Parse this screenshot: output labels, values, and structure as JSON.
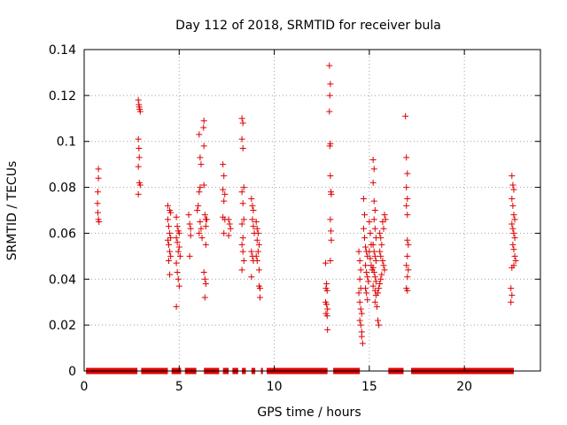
{
  "chart_data": {
    "type": "scatter",
    "title": "Day 112 of 2018, SRMTID for receiver bula",
    "xlabel": "GPS time / hours",
    "ylabel": "SRMTID / TECUs",
    "xlim": [
      0,
      24
    ],
    "ylim": [
      0,
      0.14
    ],
    "grid": true,
    "marker": "+",
    "color": "#dd0000",
    "xticks": [
      0,
      5,
      10,
      15,
      20
    ],
    "xtick_labels": [
      "0",
      "5",
      "10",
      "15",
      "20"
    ],
    "yticks": [
      0,
      0.02,
      0.04,
      0.06,
      0.08,
      0.1,
      0.12,
      0.14
    ],
    "ytick_labels": [
      "0",
      "0.02",
      "0.04",
      "0.06",
      "0.08",
      "0.1",
      "0.12",
      "0.14"
    ],
    "zero_segments": [
      [
        0.1,
        2.8
      ],
      [
        3.0,
        4.4
      ],
      [
        4.6,
        5.1
      ],
      [
        5.3,
        5.9
      ],
      [
        6.3,
        7.1
      ],
      [
        7.3,
        7.6
      ],
      [
        7.8,
        8.1
      ],
      [
        8.3,
        8.5
      ],
      [
        8.8,
        9.0
      ],
      [
        9.3,
        9.4
      ],
      [
        9.6,
        12.8
      ],
      [
        13.1,
        14.5
      ],
      [
        16.0,
        16.8
      ],
      [
        17.2,
        22.6
      ]
    ],
    "series": [
      {
        "name": "SRMTID",
        "points": [
          [
            0.75,
            0.088
          ],
          [
            0.75,
            0.084
          ],
          [
            0.72,
            0.078
          ],
          [
            0.7,
            0.073
          ],
          [
            0.72,
            0.069
          ],
          [
            0.75,
            0.066
          ],
          [
            0.78,
            0.065
          ],
          [
            2.85,
            0.118
          ],
          [
            2.88,
            0.116
          ],
          [
            2.9,
            0.115
          ],
          [
            2.92,
            0.114
          ],
          [
            2.95,
            0.113
          ],
          [
            2.85,
            0.101
          ],
          [
            2.88,
            0.097
          ],
          [
            2.9,
            0.093
          ],
          [
            2.85,
            0.089
          ],
          [
            2.9,
            0.082
          ],
          [
            2.95,
            0.081
          ],
          [
            2.85,
            0.077
          ],
          [
            4.4,
            0.072
          ],
          [
            4.5,
            0.07
          ],
          [
            4.55,
            0.069
          ],
          [
            4.4,
            0.066
          ],
          [
            4.45,
            0.063
          ],
          [
            4.5,
            0.06
          ],
          [
            4.55,
            0.058
          ],
          [
            4.4,
            0.057
          ],
          [
            4.45,
            0.055
          ],
          [
            4.5,
            0.052
          ],
          [
            4.55,
            0.05
          ],
          [
            4.45,
            0.048
          ],
          [
            4.5,
            0.042
          ],
          [
            4.85,
            0.067
          ],
          [
            4.9,
            0.063
          ],
          [
            4.95,
            0.061
          ],
          [
            5.0,
            0.06
          ],
          [
            4.85,
            0.058
          ],
          [
            4.9,
            0.056
          ],
          [
            5.0,
            0.054
          ],
          [
            4.95,
            0.052
          ],
          [
            5.05,
            0.05
          ],
          [
            4.85,
            0.047
          ],
          [
            4.9,
            0.043
          ],
          [
            4.95,
            0.04
          ],
          [
            5.0,
            0.037
          ],
          [
            4.85,
            0.028
          ],
          [
            5.5,
            0.068
          ],
          [
            5.55,
            0.064
          ],
          [
            5.6,
            0.062
          ],
          [
            5.6,
            0.059
          ],
          [
            5.55,
            0.05
          ],
          [
            6.05,
            0.103
          ],
          [
            6.1,
            0.093
          ],
          [
            6.15,
            0.09
          ],
          [
            6.1,
            0.08
          ],
          [
            6.05,
            0.078
          ],
          [
            6.0,
            0.072
          ],
          [
            5.95,
            0.07
          ],
          [
            6.1,
            0.065
          ],
          [
            6.15,
            0.062
          ],
          [
            6.05,
            0.06
          ],
          [
            6.2,
            0.058
          ],
          [
            6.3,
            0.109
          ],
          [
            6.28,
            0.106
          ],
          [
            6.3,
            0.098
          ],
          [
            6.3,
            0.081
          ],
          [
            6.35,
            0.068
          ],
          [
            6.4,
            0.066
          ],
          [
            6.45,
            0.066
          ],
          [
            6.4,
            0.063
          ],
          [
            6.4,
            0.055
          ],
          [
            6.3,
            0.043
          ],
          [
            6.35,
            0.04
          ],
          [
            6.4,
            0.038
          ],
          [
            6.35,
            0.032
          ],
          [
            7.3,
            0.09
          ],
          [
            7.35,
            0.085
          ],
          [
            7.3,
            0.079
          ],
          [
            7.4,
            0.077
          ],
          [
            7.35,
            0.074
          ],
          [
            7.3,
            0.067
          ],
          [
            7.4,
            0.066
          ],
          [
            7.35,
            0.06
          ],
          [
            7.6,
            0.066
          ],
          [
            7.65,
            0.064
          ],
          [
            7.7,
            0.062
          ],
          [
            7.6,
            0.059
          ],
          [
            8.3,
            0.11
          ],
          [
            8.35,
            0.108
          ],
          [
            8.3,
            0.101
          ],
          [
            8.35,
            0.097
          ],
          [
            8.4,
            0.08
          ],
          [
            8.3,
            0.078
          ],
          [
            8.35,
            0.073
          ],
          [
            8.4,
            0.066
          ],
          [
            8.3,
            0.064
          ],
          [
            8.35,
            0.058
          ],
          [
            8.3,
            0.055
          ],
          [
            8.35,
            0.052
          ],
          [
            8.4,
            0.048
          ],
          [
            8.3,
            0.044
          ],
          [
            8.8,
            0.075
          ],
          [
            8.85,
            0.072
          ],
          [
            8.9,
            0.07
          ],
          [
            8.85,
            0.066
          ],
          [
            8.9,
            0.063
          ],
          [
            8.95,
            0.06
          ],
          [
            8.8,
            0.052
          ],
          [
            8.85,
            0.05
          ],
          [
            8.9,
            0.048
          ],
          [
            8.8,
            0.041
          ],
          [
            9.05,
            0.065
          ],
          [
            9.1,
            0.062
          ],
          [
            9.15,
            0.06
          ],
          [
            9.1,
            0.057
          ],
          [
            9.2,
            0.055
          ],
          [
            9.15,
            0.052
          ],
          [
            9.05,
            0.05
          ],
          [
            9.1,
            0.048
          ],
          [
            9.2,
            0.044
          ],
          [
            9.2,
            0.037
          ],
          [
            9.25,
            0.036
          ],
          [
            9.25,
            0.032
          ],
          [
            12.7,
            0.047
          ],
          [
            12.75,
            0.038
          ],
          [
            12.72,
            0.036
          ],
          [
            12.78,
            0.035
          ],
          [
            12.7,
            0.03
          ],
          [
            12.75,
            0.029
          ],
          [
            12.8,
            0.027
          ],
          [
            12.72,
            0.025
          ],
          [
            12.78,
            0.024
          ],
          [
            12.8,
            0.018
          ],
          [
            12.9,
            0.133
          ],
          [
            12.95,
            0.125
          ],
          [
            12.92,
            0.12
          ],
          [
            12.9,
            0.113
          ],
          [
            12.95,
            0.099
          ],
          [
            12.92,
            0.098
          ],
          [
            12.95,
            0.085
          ],
          [
            12.98,
            0.078
          ],
          [
            13.0,
            0.077
          ],
          [
            12.95,
            0.066
          ],
          [
            12.98,
            0.061
          ],
          [
            13.0,
            0.057
          ],
          [
            12.95,
            0.048
          ],
          [
            14.45,
            0.052
          ],
          [
            14.5,
            0.048
          ],
          [
            14.55,
            0.044
          ],
          [
            14.5,
            0.04
          ],
          [
            14.55,
            0.036
          ],
          [
            14.45,
            0.034
          ],
          [
            14.5,
            0.03
          ],
          [
            14.55,
            0.027
          ],
          [
            14.6,
            0.025
          ],
          [
            14.5,
            0.022
          ],
          [
            14.55,
            0.02
          ],
          [
            14.6,
            0.017
          ],
          [
            14.6,
            0.015
          ],
          [
            14.65,
            0.012
          ],
          [
            14.7,
            0.075
          ],
          [
            14.75,
            0.068
          ],
          [
            14.7,
            0.062
          ],
          [
            14.75,
            0.058
          ],
          [
            14.8,
            0.054
          ],
          [
            14.85,
            0.052
          ],
          [
            14.9,
            0.05
          ],
          [
            14.8,
            0.046
          ],
          [
            14.85,
            0.043
          ],
          [
            14.9,
            0.041
          ],
          [
            14.95,
            0.039
          ],
          [
            14.8,
            0.036
          ],
          [
            14.85,
            0.034
          ],
          [
            14.9,
            0.031
          ],
          [
            15.0,
            0.065
          ],
          [
            15.05,
            0.06
          ],
          [
            15.1,
            0.055
          ],
          [
            15.0,
            0.052
          ],
          [
            15.05,
            0.049
          ],
          [
            15.1,
            0.046
          ],
          [
            15.15,
            0.044
          ],
          [
            15.2,
            0.092
          ],
          [
            15.25,
            0.088
          ],
          [
            15.2,
            0.082
          ],
          [
            15.25,
            0.074
          ],
          [
            15.3,
            0.07
          ],
          [
            15.25,
            0.066
          ],
          [
            15.3,
            0.062
          ],
          [
            15.35,
            0.058
          ],
          [
            15.2,
            0.055
          ],
          [
            15.25,
            0.052
          ],
          [
            15.3,
            0.05
          ],
          [
            15.35,
            0.048
          ],
          [
            15.2,
            0.045
          ],
          [
            15.25,
            0.043
          ],
          [
            15.3,
            0.041
          ],
          [
            15.35,
            0.039
          ],
          [
            15.2,
            0.037
          ],
          [
            15.3,
            0.035
          ],
          [
            15.35,
            0.033
          ],
          [
            15.3,
            0.03
          ],
          [
            15.4,
            0.028
          ],
          [
            15.45,
            0.022
          ],
          [
            15.5,
            0.02
          ],
          [
            15.55,
            0.06
          ],
          [
            15.6,
            0.058
          ],
          [
            15.65,
            0.055
          ],
          [
            15.55,
            0.052
          ],
          [
            15.6,
            0.05
          ],
          [
            15.7,
            0.065
          ],
          [
            15.75,
            0.062
          ],
          [
            15.8,
            0.068
          ],
          [
            15.85,
            0.066
          ],
          [
            15.7,
            0.048
          ],
          [
            15.75,
            0.046
          ],
          [
            15.8,
            0.044
          ],
          [
            15.65,
            0.042
          ],
          [
            15.6,
            0.04
          ],
          [
            15.55,
            0.038
          ],
          [
            15.5,
            0.036
          ],
          [
            15.45,
            0.034
          ],
          [
            16.9,
            0.111
          ],
          [
            16.95,
            0.093
          ],
          [
            17.0,
            0.086
          ],
          [
            16.95,
            0.08
          ],
          [
            17.0,
            0.075
          ],
          [
            16.95,
            0.072
          ],
          [
            17.0,
            0.068
          ],
          [
            17.0,
            0.057
          ],
          [
            17.05,
            0.055
          ],
          [
            17.0,
            0.05
          ],
          [
            16.95,
            0.046
          ],
          [
            17.05,
            0.044
          ],
          [
            17.0,
            0.041
          ],
          [
            16.95,
            0.036
          ],
          [
            17.0,
            0.035
          ],
          [
            22.5,
            0.085
          ],
          [
            22.55,
            0.081
          ],
          [
            22.6,
            0.079
          ],
          [
            22.5,
            0.075
          ],
          [
            22.55,
            0.072
          ],
          [
            22.6,
            0.068
          ],
          [
            22.65,
            0.066
          ],
          [
            22.5,
            0.064
          ],
          [
            22.55,
            0.062
          ],
          [
            22.6,
            0.06
          ],
          [
            22.65,
            0.058
          ],
          [
            22.55,
            0.055
          ],
          [
            22.6,
            0.053
          ],
          [
            22.65,
            0.05
          ],
          [
            22.7,
            0.048
          ],
          [
            22.6,
            0.046
          ],
          [
            22.5,
            0.045
          ],
          [
            22.45,
            0.036
          ],
          [
            22.5,
            0.033
          ],
          [
            22.45,
            0.03
          ]
        ]
      }
    ]
  }
}
